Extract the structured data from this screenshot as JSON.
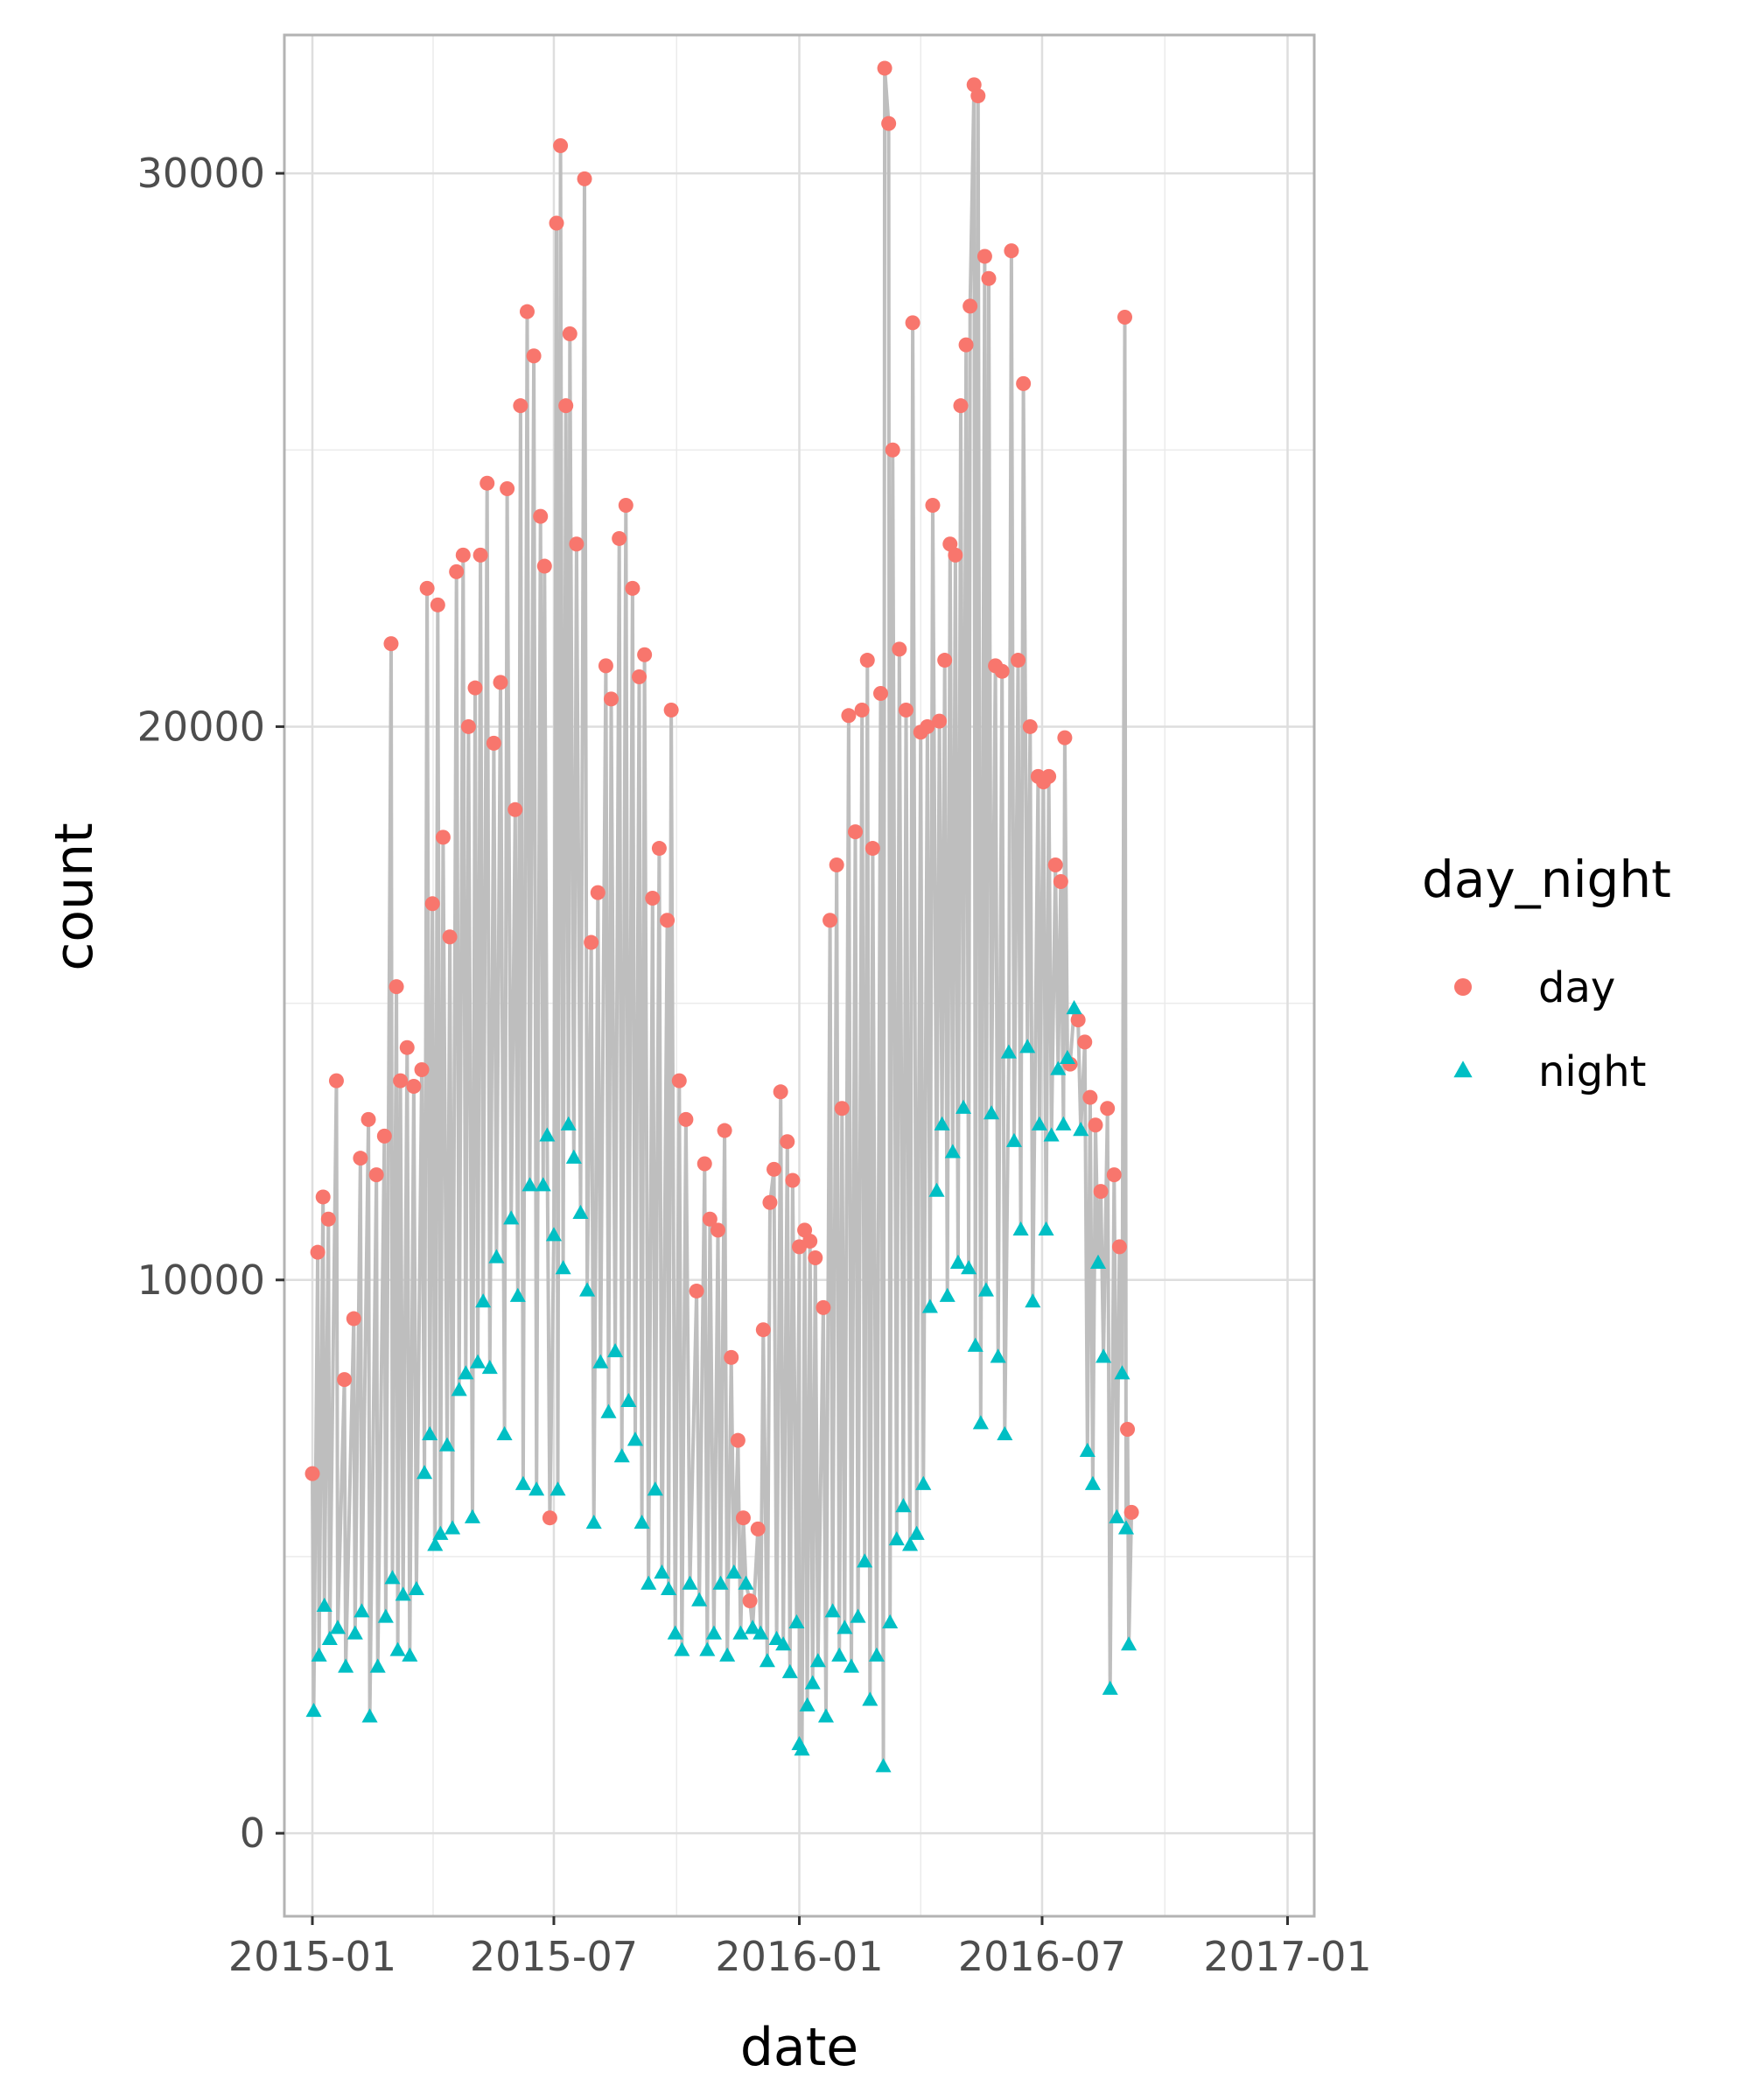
{
  "chart_data": {
    "type": "scatter",
    "title": "",
    "xlabel": "date",
    "ylabel": "count",
    "x_ticks": [
      "2015-01",
      "2015-07",
      "2016-01",
      "2016-07",
      "2017-01"
    ],
    "y_ticks": [
      "0",
      "10000",
      "20000",
      "30000"
    ],
    "xlim": [
      "2014-12-11",
      "2017-01-21"
    ],
    "ylim": [
      -1500,
      32500
    ],
    "grid": true,
    "connector_line": true,
    "legend": {
      "title": "day_night",
      "position": "right"
    },
    "colors": {
      "day": "#F8766D",
      "night": "#00BFC4",
      "line": "#BEBEBE",
      "grid": "#EBEBEB",
      "border": "#B3B3B3"
    },
    "series": [
      {
        "name": "day",
        "marker": "circle",
        "points": [
          [
            "2015-01-01",
            6500
          ],
          [
            "2015-01-05",
            10500
          ],
          [
            "2015-01-09",
            11500
          ],
          [
            "2015-01-13",
            11100
          ],
          [
            "2015-01-19",
            13600
          ],
          [
            "2015-01-25",
            8200
          ],
          [
            "2015-02-01",
            9300
          ],
          [
            "2015-02-06",
            12200
          ],
          [
            "2015-02-12",
            12900
          ],
          [
            "2015-02-18",
            11900
          ],
          [
            "2015-02-24",
            12600
          ],
          [
            "2015-03-01",
            21500
          ],
          [
            "2015-03-05",
            15300
          ],
          [
            "2015-03-08",
            13600
          ],
          [
            "2015-03-13",
            14200
          ],
          [
            "2015-03-18",
            13500
          ],
          [
            "2015-03-24",
            13800
          ],
          [
            "2015-03-28",
            22500
          ],
          [
            "2015-04-01",
            16800
          ],
          [
            "2015-04-05",
            22200
          ],
          [
            "2015-04-09",
            18000
          ],
          [
            "2015-04-14",
            16200
          ],
          [
            "2015-04-19",
            22800
          ],
          [
            "2015-04-24",
            23100
          ],
          [
            "2015-04-28",
            20000
          ],
          [
            "2015-05-03",
            20700
          ],
          [
            "2015-05-07",
            23100
          ],
          [
            "2015-05-12",
            24400
          ],
          [
            "2015-05-17",
            19700
          ],
          [
            "2015-05-22",
            20800
          ],
          [
            "2015-05-27",
            24300
          ],
          [
            "2015-06-02",
            18500
          ],
          [
            "2015-06-06",
            25800
          ],
          [
            "2015-06-11",
            27500
          ],
          [
            "2015-06-16",
            26700
          ],
          [
            "2015-06-21",
            23800
          ],
          [
            "2015-06-24",
            22900
          ],
          [
            "2015-06-28",
            5700
          ],
          [
            "2015-07-03",
            29100
          ],
          [
            "2015-07-06",
            30500
          ],
          [
            "2015-07-10",
            25800
          ],
          [
            "2015-07-13",
            27100
          ],
          [
            "2015-07-18",
            23300
          ],
          [
            "2015-07-24",
            29900
          ],
          [
            "2015-07-29",
            16100
          ],
          [
            "2015-08-03",
            17000
          ],
          [
            "2015-08-09",
            21100
          ],
          [
            "2015-08-13",
            20500
          ],
          [
            "2015-08-19",
            23400
          ],
          [
            "2015-08-24",
            24000
          ],
          [
            "2015-08-29",
            22500
          ],
          [
            "2015-09-03",
            20900
          ],
          [
            "2015-09-07",
            21300
          ],
          [
            "2015-09-13",
            16900
          ],
          [
            "2015-09-18",
            17800
          ],
          [
            "2015-09-24",
            16500
          ],
          [
            "2015-09-27",
            20300
          ],
          [
            "2015-10-03",
            13600
          ],
          [
            "2015-10-08",
            12900
          ],
          [
            "2015-10-16",
            9800
          ],
          [
            "2015-10-22",
            12100
          ],
          [
            "2015-10-26",
            11100
          ],
          [
            "2015-11-01",
            10900
          ],
          [
            "2015-11-06",
            12700
          ],
          [
            "2015-11-11",
            8600
          ],
          [
            "2015-11-16",
            7100
          ],
          [
            "2015-11-20",
            5700
          ],
          [
            "2015-11-25",
            4200
          ],
          [
            "2015-12-01",
            5500
          ],
          [
            "2015-12-05",
            9100
          ],
          [
            "2015-12-10",
            11400
          ],
          [
            "2015-12-13",
            12000
          ],
          [
            "2015-12-18",
            13400
          ],
          [
            "2015-12-23",
            12500
          ],
          [
            "2015-12-27",
            11800
          ],
          [
            "2016-01-01",
            10600
          ],
          [
            "2016-01-05",
            10900
          ],
          [
            "2016-01-09",
            10700
          ],
          [
            "2016-01-13",
            10400
          ],
          [
            "2016-01-19",
            9500
          ],
          [
            "2016-01-24",
            16500
          ],
          [
            "2016-01-29",
            17500
          ],
          [
            "2016-02-02",
            13100
          ],
          [
            "2016-02-07",
            20200
          ],
          [
            "2016-02-12",
            18100
          ],
          [
            "2016-02-17",
            20300
          ],
          [
            "2016-02-21",
            21200
          ],
          [
            "2016-02-25",
            17800
          ],
          [
            "2016-03-02",
            20600
          ],
          [
            "2016-03-05",
            31900
          ],
          [
            "2016-03-08",
            30900
          ],
          [
            "2016-03-11",
            25000
          ],
          [
            "2016-03-16",
            21400
          ],
          [
            "2016-03-21",
            20300
          ],
          [
            "2016-03-26",
            27300
          ],
          [
            "2016-04-01",
            19900
          ],
          [
            "2016-04-06",
            20000
          ],
          [
            "2016-04-10",
            24000
          ],
          [
            "2016-04-15",
            20100
          ],
          [
            "2016-04-19",
            21200
          ],
          [
            "2016-04-23",
            23300
          ],
          [
            "2016-04-27",
            23100
          ],
          [
            "2016-05-01",
            25800
          ],
          [
            "2016-05-05",
            26900
          ],
          [
            "2016-05-08",
            27600
          ],
          [
            "2016-05-11",
            31600
          ],
          [
            "2016-05-14",
            31400
          ],
          [
            "2016-05-19",
            28500
          ],
          [
            "2016-05-22",
            28100
          ],
          [
            "2016-05-27",
            21100
          ],
          [
            "2016-06-01",
            21000
          ],
          [
            "2016-06-08",
            28600
          ],
          [
            "2016-06-13",
            21200
          ],
          [
            "2016-06-17",
            26200
          ],
          [
            "2016-06-22",
            20000
          ],
          [
            "2016-06-28",
            19100
          ],
          [
            "2016-07-02",
            19000
          ],
          [
            "2016-07-06",
            19100
          ],
          [
            "2016-07-11",
            17500
          ],
          [
            "2016-07-15",
            17200
          ],
          [
            "2016-07-18",
            19800
          ],
          [
            "2016-07-22",
            13900
          ],
          [
            "2016-07-28",
            14700
          ],
          [
            "2016-08-02",
            14300
          ],
          [
            "2016-08-06",
            13300
          ],
          [
            "2016-08-10",
            12800
          ],
          [
            "2016-08-14",
            11600
          ],
          [
            "2016-08-19",
            13100
          ],
          [
            "2016-08-24",
            11900
          ],
          [
            "2016-08-28",
            10600
          ],
          [
            "2016-09-01",
            27400
          ],
          [
            "2016-09-03",
            7300
          ],
          [
            "2016-09-06",
            5800
          ]
        ]
      },
      {
        "name": "night",
        "marker": "triangle",
        "points": [
          [
            "2015-01-02",
            2200
          ],
          [
            "2015-01-06",
            3200
          ],
          [
            "2015-01-10",
            4100
          ],
          [
            "2015-01-14",
            3500
          ],
          [
            "2015-01-20",
            3700
          ],
          [
            "2015-01-26",
            3000
          ],
          [
            "2015-02-02",
            3600
          ],
          [
            "2015-02-07",
            4000
          ],
          [
            "2015-02-13",
            2100
          ],
          [
            "2015-02-19",
            3000
          ],
          [
            "2015-02-25",
            3900
          ],
          [
            "2015-03-02",
            4600
          ],
          [
            "2015-03-06",
            3300
          ],
          [
            "2015-03-10",
            4300
          ],
          [
            "2015-03-15",
            3200
          ],
          [
            "2015-03-20",
            4400
          ],
          [
            "2015-03-26",
            6500
          ],
          [
            "2015-03-30",
            7200
          ],
          [
            "2015-04-03",
            5200
          ],
          [
            "2015-04-07",
            5400
          ],
          [
            "2015-04-12",
            7000
          ],
          [
            "2015-04-16",
            5500
          ],
          [
            "2015-04-21",
            8000
          ],
          [
            "2015-04-26",
            8300
          ],
          [
            "2015-05-01",
            5700
          ],
          [
            "2015-05-05",
            8500
          ],
          [
            "2015-05-09",
            9600
          ],
          [
            "2015-05-14",
            8400
          ],
          [
            "2015-05-19",
            10400
          ],
          [
            "2015-05-25",
            7200
          ],
          [
            "2015-05-30",
            11100
          ],
          [
            "2015-06-04",
            9700
          ],
          [
            "2015-06-08",
            6300
          ],
          [
            "2015-06-13",
            11700
          ],
          [
            "2015-06-18",
            6200
          ],
          [
            "2015-06-23",
            11700
          ],
          [
            "2015-06-26",
            12600
          ],
          [
            "2015-07-01",
            10800
          ],
          [
            "2015-07-04",
            6200
          ],
          [
            "2015-07-08",
            10200
          ],
          [
            "2015-07-12",
            12800
          ],
          [
            "2015-07-16",
            12200
          ],
          [
            "2015-07-21",
            11200
          ],
          [
            "2015-07-26",
            9800
          ],
          [
            "2015-07-31",
            5600
          ],
          [
            "2015-08-05",
            8500
          ],
          [
            "2015-08-11",
            7600
          ],
          [
            "2015-08-16",
            8700
          ],
          [
            "2015-08-21",
            6800
          ],
          [
            "2015-08-26",
            7800
          ],
          [
            "2015-08-31",
            7100
          ],
          [
            "2015-09-05",
            5600
          ],
          [
            "2015-09-10",
            4500
          ],
          [
            "2015-09-15",
            6200
          ],
          [
            "2015-09-20",
            4700
          ],
          [
            "2015-09-25",
            4400
          ],
          [
            "2015-09-30",
            3600
          ],
          [
            "2015-10-05",
            3300
          ],
          [
            "2015-10-11",
            4500
          ],
          [
            "2015-10-18",
            4200
          ],
          [
            "2015-10-24",
            3300
          ],
          [
            "2015-10-29",
            3600
          ],
          [
            "2015-11-03",
            4500
          ],
          [
            "2015-11-08",
            3200
          ],
          [
            "2015-11-13",
            4700
          ],
          [
            "2015-11-18",
            3600
          ],
          [
            "2015-11-22",
            4500
          ],
          [
            "2015-11-27",
            3700
          ],
          [
            "2015-12-03",
            3600
          ],
          [
            "2015-12-08",
            3100
          ],
          [
            "2015-12-15",
            3500
          ],
          [
            "2015-12-20",
            3400
          ],
          [
            "2015-12-25",
            2900
          ],
          [
            "2015-12-30",
            3800
          ],
          [
            "2016-01-01",
            1600
          ],
          [
            "2016-01-03",
            1500
          ],
          [
            "2016-01-07",
            2300
          ],
          [
            "2016-01-11",
            2700
          ],
          [
            "2016-01-15",
            3100
          ],
          [
            "2016-01-21",
            2100
          ],
          [
            "2016-01-26",
            4000
          ],
          [
            "2016-01-31",
            3200
          ],
          [
            "2016-02-04",
            3700
          ],
          [
            "2016-02-09",
            3000
          ],
          [
            "2016-02-14",
            3900
          ],
          [
            "2016-02-19",
            4900
          ],
          [
            "2016-02-23",
            2400
          ],
          [
            "2016-02-28",
            3200
          ],
          [
            "2016-03-04",
            1200
          ],
          [
            "2016-03-09",
            3800
          ],
          [
            "2016-03-14",
            5300
          ],
          [
            "2016-03-19",
            5900
          ],
          [
            "2016-03-24",
            5200
          ],
          [
            "2016-03-29",
            5400
          ],
          [
            "2016-04-03",
            6300
          ],
          [
            "2016-04-08",
            9500
          ],
          [
            "2016-04-13",
            11600
          ],
          [
            "2016-04-17",
            12800
          ],
          [
            "2016-04-21",
            9700
          ],
          [
            "2016-04-25",
            12300
          ],
          [
            "2016-04-29",
            10300
          ],
          [
            "2016-05-03",
            13100
          ],
          [
            "2016-05-07",
            10200
          ],
          [
            "2016-05-12",
            8800
          ],
          [
            "2016-05-16",
            7400
          ],
          [
            "2016-05-20",
            9800
          ],
          [
            "2016-05-24",
            13000
          ],
          [
            "2016-05-29",
            8600
          ],
          [
            "2016-06-03",
            7200
          ],
          [
            "2016-06-06",
            14100
          ],
          [
            "2016-06-10",
            12500
          ],
          [
            "2016-06-15",
            10900
          ],
          [
            "2016-06-20",
            14200
          ],
          [
            "2016-06-24",
            9600
          ],
          [
            "2016-06-29",
            12800
          ],
          [
            "2016-07-04",
            10900
          ],
          [
            "2016-07-08",
            12600
          ],
          [
            "2016-07-13",
            13800
          ],
          [
            "2016-07-17",
            12800
          ],
          [
            "2016-07-20",
            14000
          ],
          [
            "2016-07-25",
            14900
          ],
          [
            "2016-07-30",
            12700
          ],
          [
            "2016-08-04",
            6900
          ],
          [
            "2016-08-08",
            6300
          ],
          [
            "2016-08-12",
            10300
          ],
          [
            "2016-08-16",
            8600
          ],
          [
            "2016-08-21",
            2600
          ],
          [
            "2016-08-26",
            5700
          ],
          [
            "2016-08-30",
            8300
          ],
          [
            "2016-09-02",
            5500
          ],
          [
            "2016-09-04",
            3400
          ]
        ]
      }
    ]
  }
}
